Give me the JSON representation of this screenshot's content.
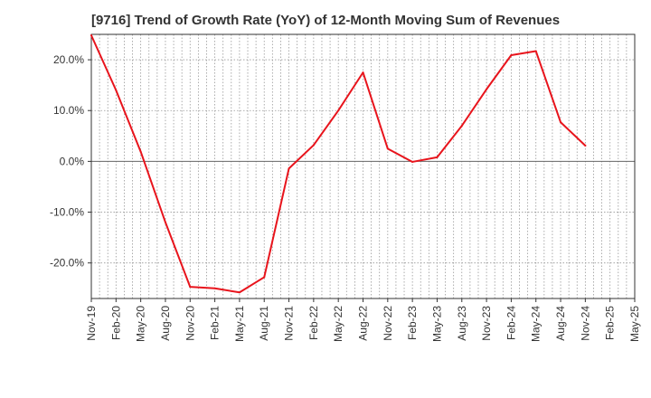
{
  "chart_data": {
    "type": "line",
    "title": "[9716]  Trend of Growth Rate (YoY) of 12-Month Moving Sum of Revenues",
    "xlabel": "",
    "ylabel": "",
    "x_ticks": [
      "Nov-19",
      "Feb-20",
      "May-20",
      "Aug-20",
      "Nov-20",
      "Feb-21",
      "May-21",
      "Aug-21",
      "Nov-21",
      "Feb-22",
      "May-22",
      "Aug-22",
      "Nov-22",
      "Feb-23",
      "May-23",
      "Aug-23",
      "Nov-23",
      "Feb-24",
      "May-24",
      "Aug-24",
      "Nov-24",
      "Feb-25",
      "May-25"
    ],
    "y_ticks": [
      {
        "value": 20,
        "label": "20.0%"
      },
      {
        "value": 10,
        "label": "10.0%"
      },
      {
        "value": 0,
        "label": "0.0%"
      },
      {
        "value": -10,
        "label": "-10.0%"
      },
      {
        "value": -20,
        "label": "-20.0%"
      }
    ],
    "ylim": [
      -27,
      25
    ],
    "grid": true,
    "series": [
      {
        "color": "#e8141c",
        "x": [
          "Nov-19",
          "Feb-20",
          "May-20",
          "Aug-20",
          "Nov-20",
          "Feb-21",
          "May-21",
          "Aug-21",
          "Nov-21",
          "Feb-22",
          "May-22",
          "Aug-22",
          "Nov-22",
          "Feb-23",
          "May-23",
          "Aug-23",
          "Nov-23",
          "Feb-24",
          "May-24",
          "Aug-24",
          "Nov-24"
        ],
        "values": [
          24.8,
          14.0,
          1.9,
          -12.0,
          -24.7,
          -25.0,
          -25.8,
          -22.8,
          -1.4,
          3.2,
          10.0,
          17.5,
          2.5,
          -0.1,
          0.8,
          7.0,
          14.2,
          20.9,
          21.7,
          7.7,
          3.1
        ]
      }
    ]
  }
}
